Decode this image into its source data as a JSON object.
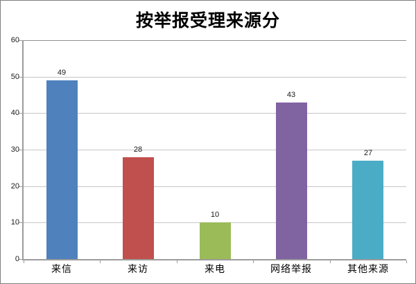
{
  "chart_data": {
    "type": "bar",
    "title": "按举报受理来源分",
    "categories": [
      "来信",
      "来访",
      "来电",
      "网络举报",
      "其他来源"
    ],
    "values": [
      49,
      28,
      10,
      43,
      27
    ],
    "bar_colors": [
      "#4f81bd",
      "#c0504d",
      "#9bbb59",
      "#8064a2",
      "#4bacc6"
    ],
    "y_ticks": [
      0,
      10,
      20,
      30,
      40,
      50,
      60
    ],
    "ylim": [
      0,
      60
    ],
    "xlabel": "",
    "ylabel": "",
    "grid": "horizontal-major",
    "legend_position": "none",
    "data_labels": "above-bars"
  },
  "colors": {
    "background": "#ffffff",
    "outer_border": "#7f7f7f",
    "gridline": "#c6c6c6",
    "top_gridline": "#8f8f8f",
    "axis_line": "#9c9c9c",
    "text": "#000000"
  }
}
